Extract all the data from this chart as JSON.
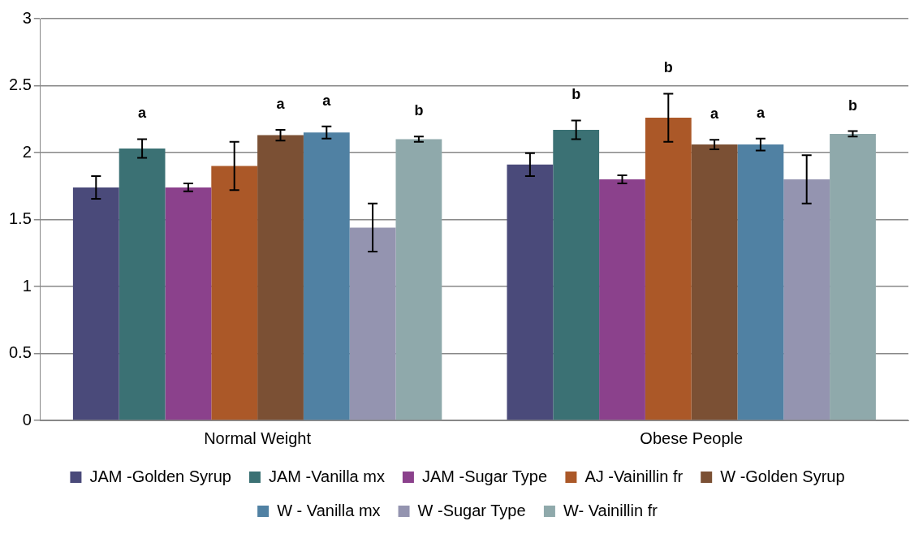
{
  "chart_data": {
    "type": "bar",
    "categories": [
      "Normal Weight",
      "Obese People"
    ],
    "ylim": [
      0,
      3
    ],
    "yticks": [
      0,
      0.5,
      1,
      1.5,
      2,
      2.5,
      3
    ],
    "grid": "y",
    "legend": "bottom",
    "series": [
      {
        "name": "JAM -Golden Syrup",
        "color": "#4a4a7a",
        "values": [
          1.74,
          1.91
        ],
        "errors": [
          0.085,
          0.085
        ],
        "value_labels": [
          null,
          null
        ]
      },
      {
        "name": "JAM -Vanilla mx",
        "color": "#3b7174",
        "values": [
          2.03,
          2.17
        ],
        "errors": [
          0.07,
          0.07
        ],
        "value_labels": [
          "a",
          "b"
        ]
      },
      {
        "name": "JAM -Sugar Type",
        "color": "#8b418c",
        "values": [
          1.74,
          1.8
        ],
        "errors": [
          0.03,
          0.03
        ],
        "value_labels": [
          null,
          null
        ]
      },
      {
        "name": "AJ -Vainillin fr",
        "color": "#ab5828",
        "values": [
          1.9,
          2.26
        ],
        "errors": [
          0.18,
          0.18
        ],
        "value_labels": [
          null,
          "b"
        ]
      },
      {
        "name": "W -Golden Syrup",
        "color": "#7b5034",
        "values": [
          2.13,
          2.06
        ],
        "errors": [
          0.04,
          0.035
        ],
        "value_labels": [
          "a",
          "a"
        ]
      },
      {
        "name": "W - Vanilla mx",
        "color": "#5081a3",
        "values": [
          2.15,
          2.06
        ],
        "errors": [
          0.045,
          0.045
        ],
        "value_labels": [
          "a",
          "a"
        ]
      },
      {
        "name": "W -Sugar Type",
        "color": "#9494b0",
        "values": [
          1.44,
          1.8
        ],
        "errors": [
          0.18,
          0.18
        ],
        "value_labels": [
          null,
          null
        ]
      },
      {
        "name": "W- Vainillin fr",
        "color": "#8fa9ab",
        "values": [
          2.1,
          2.14
        ],
        "errors": [
          0.02,
          0.02
        ],
        "value_labels": [
          "b",
          "b"
        ]
      }
    ]
  }
}
